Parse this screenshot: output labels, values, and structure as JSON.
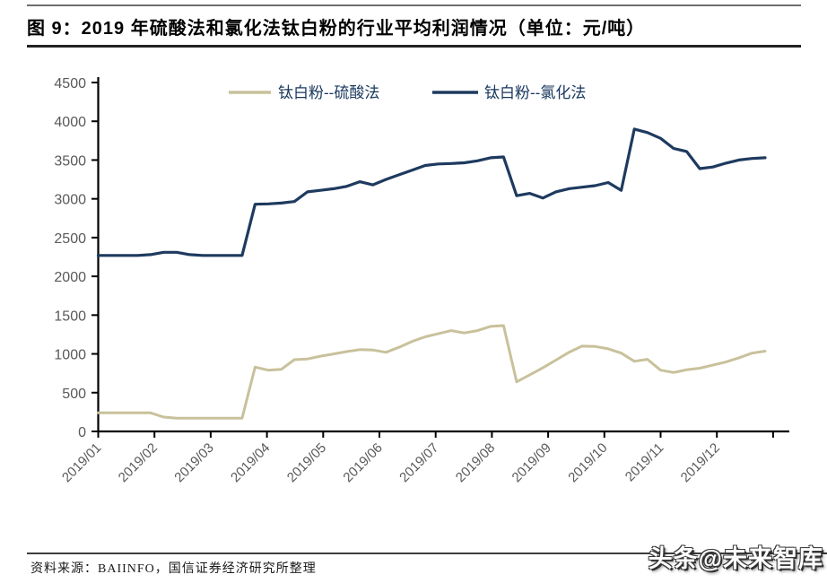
{
  "header": {
    "title": "图 9：2019 年硫酸法和氯化法钛白粉的行业平均利润情况（单位：元/吨）"
  },
  "footer": {
    "source": "资料来源：BAIINFO，国信证券经济研究所整理"
  },
  "watermark": {
    "text": "头条@未来智库"
  },
  "chart_data": {
    "type": "line",
    "title": "2019 年硫酸法和氯化法钛白粉的行业平均利润情况",
    "unit": "元/吨",
    "xlabel": "",
    "ylabel": "",
    "grid": false,
    "legend_position": "top-center",
    "ylim": [
      0,
      4500
    ],
    "y_ticks": [
      0,
      500,
      1000,
      1500,
      2000,
      2500,
      3000,
      3500,
      4000,
      4500
    ],
    "x_labels": [
      "2019/01",
      "2019/02",
      "2019/03",
      "2019/04",
      "2019/05",
      "2019/06",
      "2019/07",
      "2019/08",
      "2019/09",
      "2019/10",
      "2019/11",
      "2019/12"
    ],
    "sampling": "weekly, ~4.33 points per labeled month",
    "axis_color": "#000000",
    "tick_label_color": "#595959",
    "legend_text_color": "#17365d",
    "series": [
      {
        "name": "钛白粉--硫酸法",
        "color": "#c8c19b",
        "values": [
          240,
          240,
          240,
          240,
          240,
          185,
          170,
          170,
          170,
          170,
          170,
          170,
          830,
          790,
          800,
          925,
          935,
          970,
          1000,
          1030,
          1055,
          1050,
          1020,
          1085,
          1160,
          1220,
          1260,
          1300,
          1270,
          1300,
          1355,
          1365,
          640,
          730,
          820,
          920,
          1020,
          1100,
          1095,
          1065,
          1010,
          905,
          930,
          790,
          760,
          795,
          815,
          855,
          895,
          950,
          1010,
          1035
        ]
      },
      {
        "name": "钛白粉--氯化法",
        "color": "#1e3a5f",
        "values": [
          2270,
          2270,
          2270,
          2270,
          2280,
          2310,
          2310,
          2280,
          2270,
          2270,
          2270,
          2270,
          2930,
          2935,
          2945,
          2965,
          3090,
          3110,
          3130,
          3160,
          3220,
          3180,
          3250,
          3310,
          3370,
          3430,
          3450,
          3455,
          3465,
          3490,
          3530,
          3540,
          3040,
          3070,
          3010,
          3090,
          3130,
          3150,
          3170,
          3210,
          3110,
          3900,
          3855,
          3780,
          3650,
          3610,
          3390,
          3410,
          3460,
          3500,
          3520,
          3530
        ]
      }
    ]
  }
}
